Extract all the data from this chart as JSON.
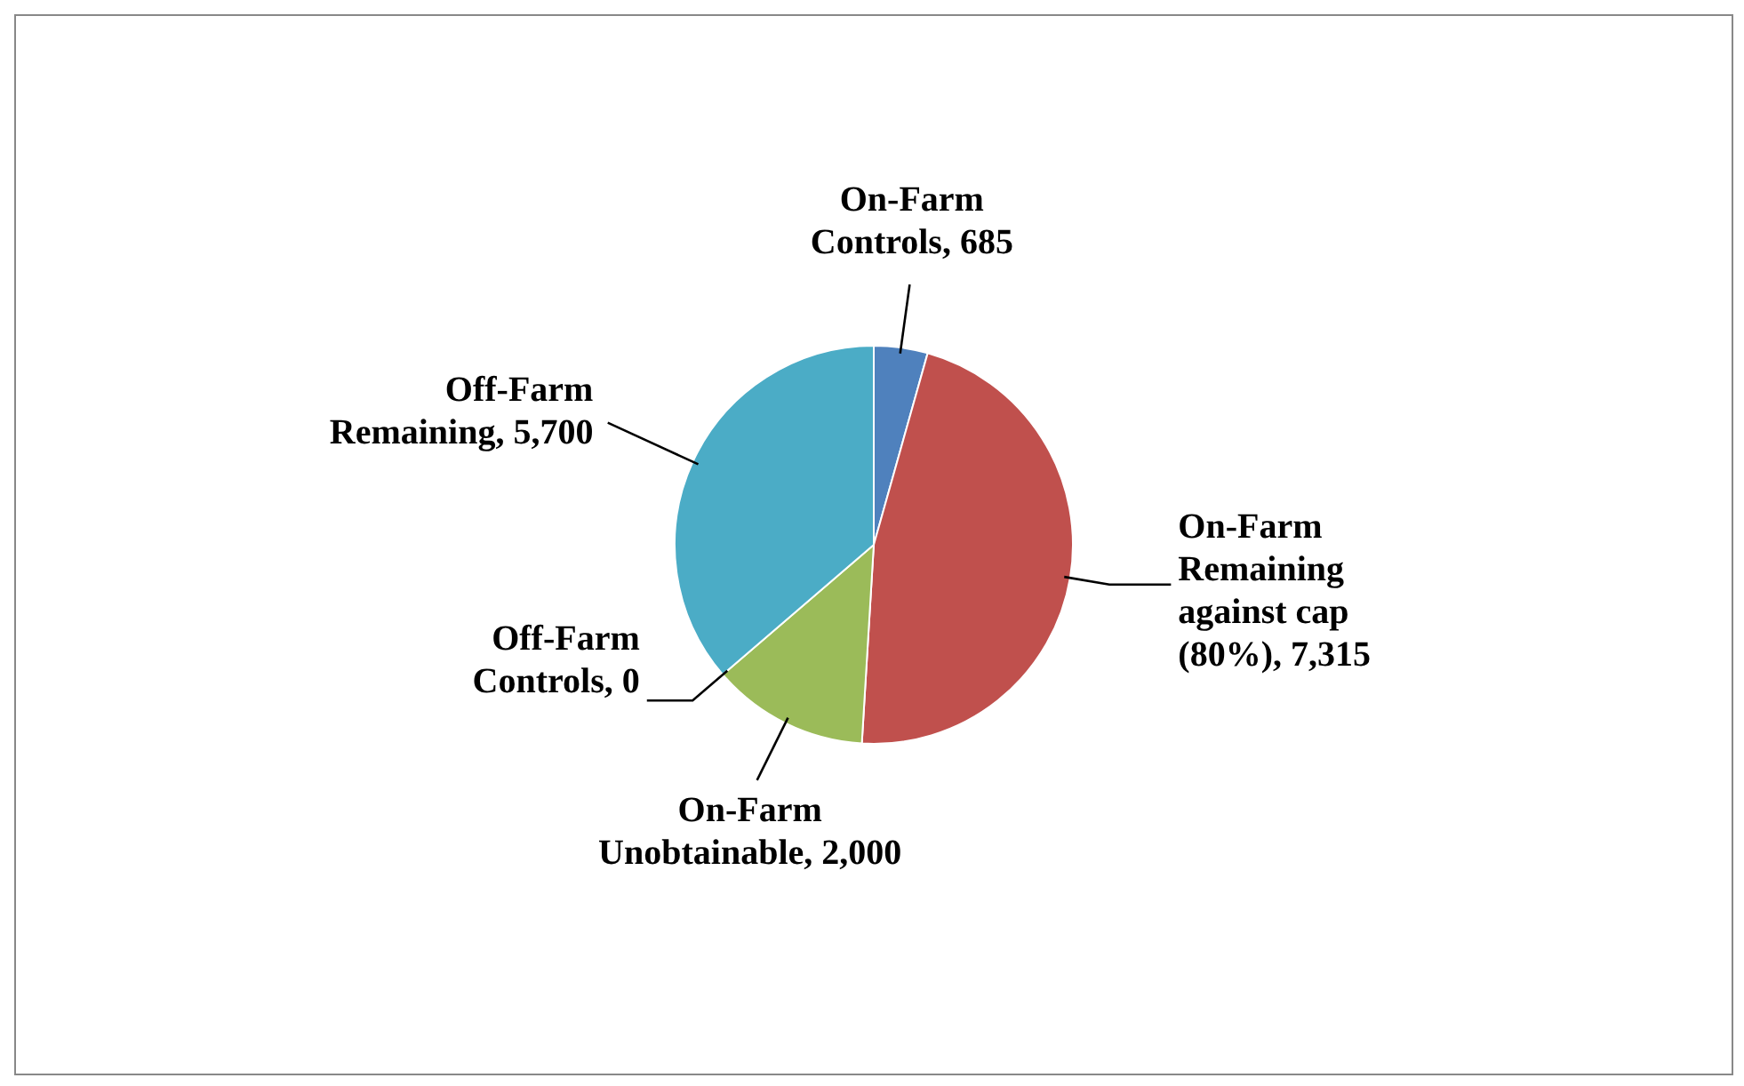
{
  "chart_data": {
    "type": "pie",
    "categories": [
      "On-Farm Controls",
      "On-Farm Remaining against cap (80%)",
      "On-Farm Unobtainable",
      "Off-Farm Controls",
      "Off-Farm Remaining"
    ],
    "values": [
      685,
      7315,
      2000,
      0,
      5700
    ],
    "value_labels": [
      ", 685",
      ", 7,315",
      ", 2,000",
      ", 0",
      ", 5,700"
    ],
    "colors": [
      "#4f81bd",
      "#c0504d",
      "#9bbb59",
      "#8064a2",
      "#4bacc6"
    ],
    "legend": false
  }
}
